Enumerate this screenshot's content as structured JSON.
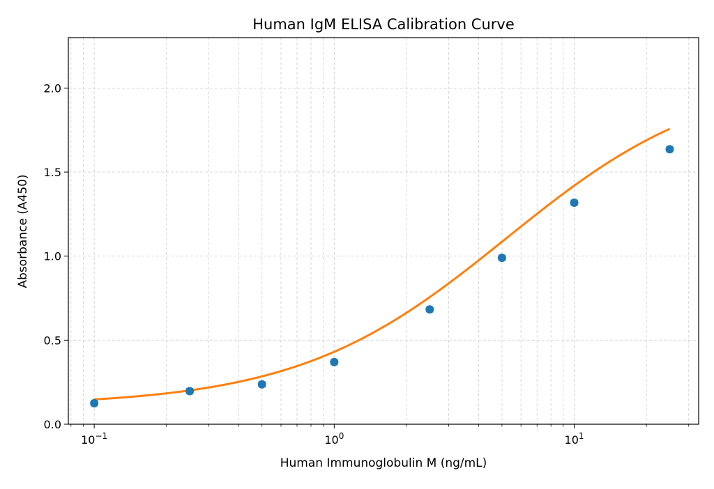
{
  "chart_data": {
    "type": "scatter",
    "title": "Human IgM ELISA Calibration Curve",
    "xlabel": "Human Immunoglobulin M (ng/mL)",
    "ylabel": "Absorbance (A450)",
    "xscale": "log",
    "xlim": [
      0.078,
      33
    ],
    "ylim": [
      0.0,
      2.3
    ],
    "x_ticks": [
      {
        "value": 0.1,
        "base": "10",
        "exp": "−1"
      },
      {
        "value": 1,
        "base": "10",
        "exp": "0"
      },
      {
        "value": 10,
        "base": "10",
        "exp": "1"
      }
    ],
    "y_ticks": [
      {
        "value": 0.0,
        "label": "0.0"
      },
      {
        "value": 0.5,
        "label": "0.5"
      },
      {
        "value": 1.0,
        "label": "1.0"
      },
      {
        "value": 1.5,
        "label": "1.5"
      },
      {
        "value": 2.0,
        "label": "2.0"
      }
    ],
    "grid": true,
    "legend": "none",
    "series": [
      {
        "type": "scatter",
        "color": "#1f77b4",
        "x": [
          0.1,
          0.25,
          0.5,
          1.0,
          2.5,
          5.0,
          10.0,
          25.0
        ],
        "y": [
          0.125,
          0.197,
          0.237,
          0.37,
          0.683,
          0.99,
          1.318,
          1.636
        ],
        "yerr": [
          0.015,
          0.015,
          0.015,
          0.015,
          0.015,
          0.015,
          0.015,
          0.015
        ]
      },
      {
        "type": "line",
        "color": "#ff7f0e",
        "model": "4PL",
        "params": {
          "A": 0.11,
          "D": 2.1,
          "C": 5.2,
          "B": 1.0
        },
        "x_range": [
          0.1,
          25.0
        ]
      }
    ]
  }
}
